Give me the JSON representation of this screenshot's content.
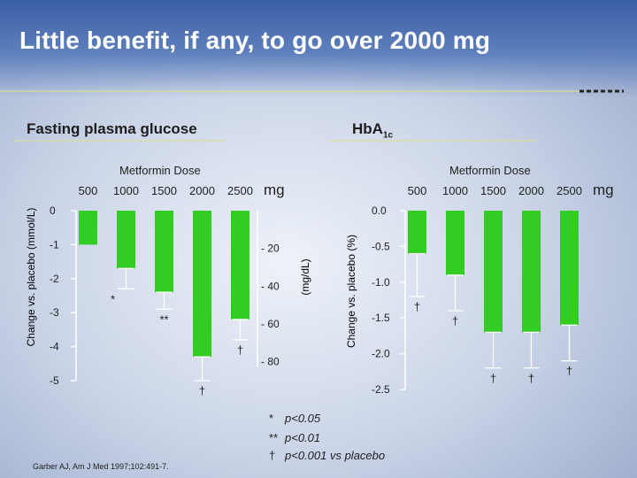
{
  "slide": {
    "title": "Little benefit, if any, to go over 2000 mg",
    "citation": "Garber AJ, Am J Med 1997;102:491-7."
  },
  "legend": [
    {
      "symbol": "*",
      "text": "p<0.05"
    },
    {
      "symbol": "**",
      "text": "p<0.01"
    },
    {
      "symbol": "†",
      "text": "p<0.001 vs placebo"
    }
  ],
  "colors": {
    "bar": "#33cc22",
    "title": "#ffffff",
    "accent_line": "#d9dd99",
    "axis": "#ffffff"
  },
  "chart_data": [
    {
      "type": "bar",
      "title": "Fasting plasma glucose",
      "subtitle": "Metformin Dose",
      "x_unit": "mg",
      "categories": [
        "500",
        "1000",
        "1500",
        "2000",
        "2500"
      ],
      "values": [
        -1.0,
        -1.7,
        -2.4,
        -4.3,
        -3.2
      ],
      "errors": [
        0.0,
        0.6,
        0.5,
        0.7,
        0.6
      ],
      "annotations": [
        "",
        "*",
        "**",
        "†",
        "†"
      ],
      "ylabel": "Change vs. placebo (mmol/L)",
      "ylim": [
        -5,
        0
      ],
      "y_ticks": [
        0,
        -1,
        -2,
        -3,
        -4,
        -5
      ],
      "y_ticks_labels": [
        "0",
        "-1",
        "-2",
        "-3",
        "-4",
        "-5"
      ],
      "secondary_axis": {
        "label": "(mg/dL)",
        "ticks": [
          20,
          40,
          60,
          80
        ],
        "tick_labels": [
          "- 20",
          "- 40",
          "- 60",
          "- 80"
        ],
        "ratio_mgdl_per_mmol": 18
      }
    },
    {
      "type": "bar",
      "title": "HbA1c",
      "title_base": "HbA",
      "title_sub": "1c",
      "subtitle": "Metformin Dose",
      "x_unit": "mg",
      "categories": [
        "500",
        "1000",
        "1500",
        "2000",
        "2500"
      ],
      "values": [
        -0.6,
        -0.9,
        -1.7,
        -1.7,
        -1.6
      ],
      "errors": [
        0.6,
        0.5,
        0.5,
        0.5,
        0.5
      ],
      "annotations": [
        "†",
        "†",
        "†",
        "†",
        "†"
      ],
      "ylabel": "Change vs. placebo (%)",
      "ylim": [
        -2.5,
        0
      ],
      "y_ticks": [
        0,
        -0.5,
        -1,
        -1.5,
        -2,
        -2.5
      ],
      "y_ticks_labels": [
        "0.0",
        "-0.5",
        "-1.0",
        "-1.5",
        "-2.0",
        "-2.5"
      ]
    }
  ]
}
